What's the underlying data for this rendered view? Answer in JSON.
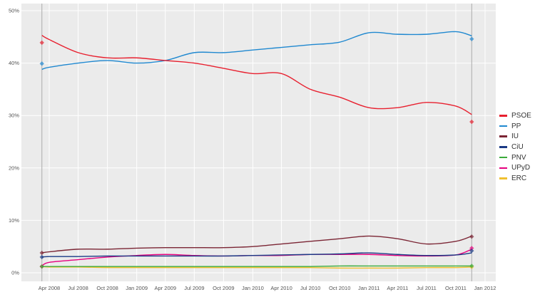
{
  "chart_data": {
    "type": "line",
    "title": "",
    "xlabel": "",
    "ylabel": "",
    "ylim": [
      0,
      50
    ],
    "xlim": [
      "2008-02-20",
      "2012-01-15"
    ],
    "grid": true,
    "legend_placement": "right",
    "y_ticks": [
      "0%",
      "10%",
      "20%",
      "30%",
      "40%",
      "50%"
    ],
    "y_tick_values": [
      0,
      10,
      20,
      30,
      40,
      50
    ],
    "x_ticks": [
      "Apr 2008",
      "Jul 2008",
      "Oct 2008",
      "Jan 2009",
      "Apr 2009",
      "Jul 2009",
      "Oct 2009",
      "Jan 2010",
      "Apr 2010",
      "Jul 2010",
      "Oct 2010",
      "Jan 2011",
      "Apr 2011",
      "Jul 2011",
      "Oct 2011",
      "Jan 2012"
    ],
    "x_tick_dates": [
      "2008-04-01",
      "2008-07-01",
      "2008-10-01",
      "2009-01-01",
      "2009-04-01",
      "2009-07-01",
      "2009-10-01",
      "2010-01-01",
      "2010-04-01",
      "2010-07-01",
      "2010-10-01",
      "2011-01-01",
      "2011-04-01",
      "2011-07-01",
      "2011-10-01",
      "2012-01-01"
    ],
    "election_dates": [
      "2008-03-09",
      "2011-11-20"
    ],
    "x": [
      "2008-03-09",
      "2008-04-01",
      "2008-07-01",
      "2008-10-01",
      "2009-01-01",
      "2009-04-01",
      "2009-07-01",
      "2009-10-01",
      "2010-01-01",
      "2010-04-01",
      "2010-07-01",
      "2010-10-01",
      "2011-01-01",
      "2011-04-01",
      "2011-07-01",
      "2011-10-01",
      "2011-11-20"
    ],
    "series": [
      {
        "name": "PSOE",
        "color": "#e8202f",
        "values": [
          45.3,
          44.5,
          42,
          41,
          41,
          40.5,
          40,
          39,
          38,
          38,
          35,
          33.5,
          31.5,
          31.5,
          32.5,
          31.8,
          30.2
        ],
        "results": [
          43.9,
          28.8
        ]
      },
      {
        "name": "PP",
        "color": "#1f88d0",
        "values": [
          38.8,
          39.2,
          40,
          40.5,
          40,
          40.5,
          42,
          42,
          42.5,
          43,
          43.5,
          44,
          45.8,
          45.5,
          45.5,
          46,
          45.2
        ],
        "results": [
          39.9,
          44.6
        ]
      },
      {
        "name": "IU",
        "color": "#7b2534",
        "values": [
          3.8,
          4,
          4.5,
          4.5,
          4.7,
          4.8,
          4.8,
          4.8,
          5,
          5.5,
          6,
          6.5,
          7,
          6.5,
          5.5,
          6,
          7
        ],
        "results": [
          3.8,
          6.9
        ]
      },
      {
        "name": "CiU",
        "color": "#1a3a85",
        "values": [
          3,
          3.1,
          3.1,
          3.2,
          3.2,
          3.2,
          3.2,
          3.2,
          3.3,
          3.4,
          3.5,
          3.6,
          3.8,
          3.5,
          3.3,
          3.4,
          3.8
        ],
        "results": [
          3.0,
          4.2
        ]
      },
      {
        "name": "PNV",
        "color": "#3bab3b",
        "values": [
          1.2,
          1.2,
          1.2,
          1.2,
          1.2,
          1.2,
          1.2,
          1.2,
          1.2,
          1.2,
          1.2,
          1.3,
          1.3,
          1.3,
          1.3,
          1.3,
          1.3
        ],
        "results": [
          1.2,
          1.3
        ]
      },
      {
        "name": "UPyD",
        "color": "#e5007d",
        "values": [
          1.3,
          2,
          2.5,
          3,
          3.3,
          3.5,
          3.3,
          3.2,
          3.3,
          3.3,
          3.5,
          3.5,
          3.5,
          3.3,
          3.2,
          3.4,
          4.5
        ],
        "results": [
          1.2,
          4.7
        ]
      },
      {
        "name": "ERC",
        "color": "#f0c030",
        "values": [
          1.2,
          1.1,
          1.1,
          1.0,
          1.0,
          1.0,
          1.0,
          1.0,
          1.0,
          1.0,
          1.0,
          0.9,
          0.9,
          0.9,
          1.0,
          1.0,
          1.1
        ],
        "results": [
          1.2,
          1.1
        ]
      }
    ]
  }
}
